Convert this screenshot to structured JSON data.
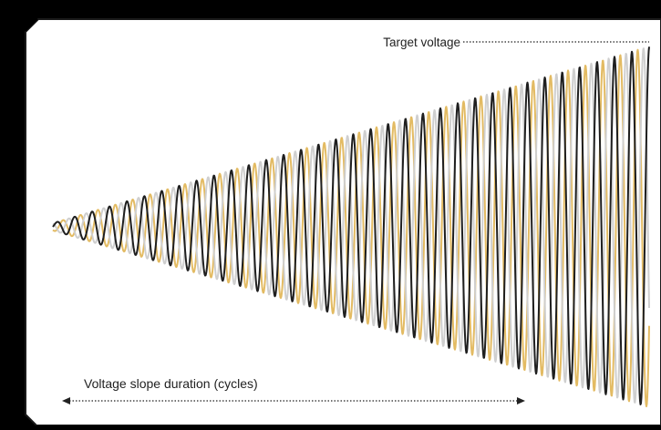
{
  "colors": {
    "background": "#000000",
    "panel": "#ffffff",
    "panel_border": "#1a1a1a",
    "phase_a": "#1f1f1f",
    "phase_b": "#e3bb63",
    "phase_c": "#cfcfcf",
    "annotation": "#222222"
  },
  "labels": {
    "target_voltage": "Target voltage",
    "slope_duration": "Voltage slope duration (cycles)"
  },
  "waveform": {
    "phases": [
      {
        "color_key": "phase_a",
        "offset_deg": 0
      },
      {
        "color_key": "phase_b",
        "offset_deg": 120
      },
      {
        "color_key": "phase_c",
        "offset_deg": 240
      }
    ]
  }
}
